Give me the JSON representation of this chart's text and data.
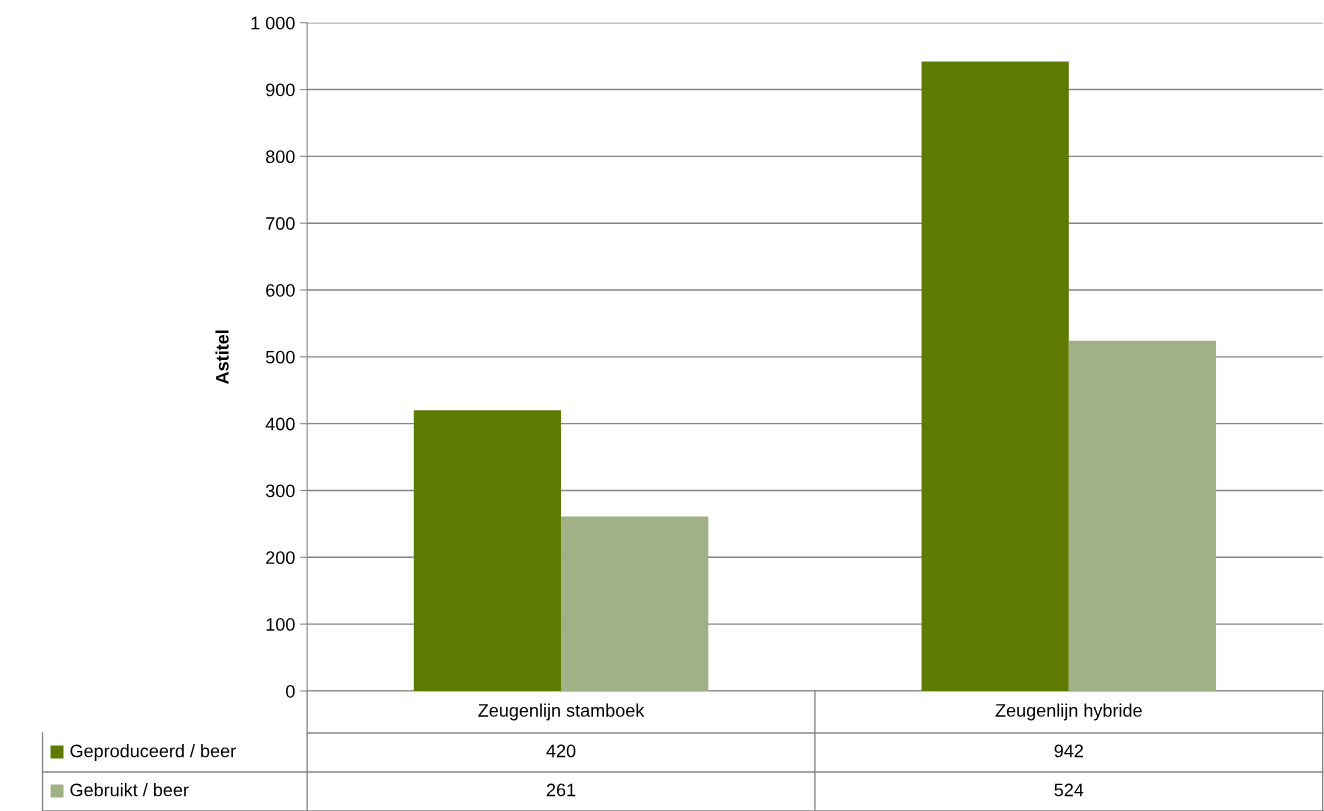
{
  "chart_data": {
    "type": "bar",
    "ylabel": "Astitel",
    "categories": [
      "Zeugenlijn stamboek",
      "Zeugenlijn hybride"
    ],
    "series": [
      {
        "name": "Geproduceerd / beer",
        "color": "#5f7a00",
        "values": [
          420,
          942
        ]
      },
      {
        "name": "Gebruikt / beer",
        "color": "#a2b086",
        "values": [
          261,
          524
        ]
      }
    ],
    "ylim": [
      0,
      1000
    ],
    "yticks": [
      0,
      100,
      200,
      300,
      400,
      500,
      600,
      700,
      800,
      900,
      {
        "value": 1000,
        "label": "1 000"
      }
    ],
    "grid": "y",
    "legend": "bottom",
    "data_labels": true
  }
}
